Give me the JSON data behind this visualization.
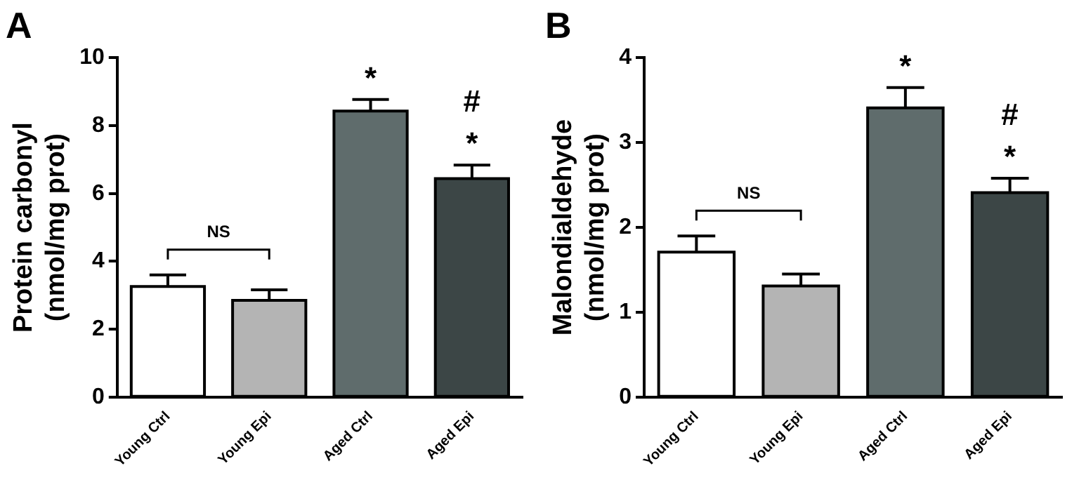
{
  "chart_data": [
    {
      "type": "bar",
      "title": "A",
      "ylabel": "Protein carbonyl\n(nmol/mg prot)",
      "categories": [
        "Young Ctrl",
        "Young Epi",
        "Aged Ctrl",
        "Aged Epi"
      ],
      "values": [
        3.26,
        2.85,
        8.43,
        6.44
      ],
      "errors": [
        [
          3.26,
          3.6
        ],
        [
          2.85,
          3.16
        ],
        [
          8.43,
          8.77
        ],
        [
          6.44,
          6.84
        ]
      ],
      "colors": [
        "#ffffff",
        "#b4b4b4",
        "#5f6c6c",
        "#3c4646"
      ],
      "ylim": [
        0,
        10
      ],
      "yticks": [
        0,
        2,
        4,
        6,
        8,
        10
      ],
      "grid": false,
      "legend": false,
      "annotations": [
        "*",
        "*",
        "#",
        "NS"
      ]
    },
    {
      "type": "bar",
      "title": "B",
      "ylabel": "Malondialdehyde\n(nmol/mg prot)",
      "categories": [
        "Young Ctrl",
        "Young Epi",
        "Aged Ctrl",
        "Aged Epi"
      ],
      "values": [
        1.71,
        1.31,
        3.41,
        2.41
      ],
      "errors": [
        [
          1.71,
          1.9
        ],
        [
          1.31,
          1.45
        ],
        [
          3.41,
          3.65
        ],
        [
          2.41,
          2.58
        ]
      ],
      "colors": [
        "#ffffff",
        "#b4b4b4",
        "#5f6c6c",
        "#3c4646"
      ],
      "ylim": [
        0,
        4
      ],
      "yticks": [
        0,
        1,
        2,
        3,
        4
      ],
      "grid": false,
      "legend": false,
      "annotations": [
        "*",
        "*",
        "#",
        "NS"
      ]
    }
  ]
}
